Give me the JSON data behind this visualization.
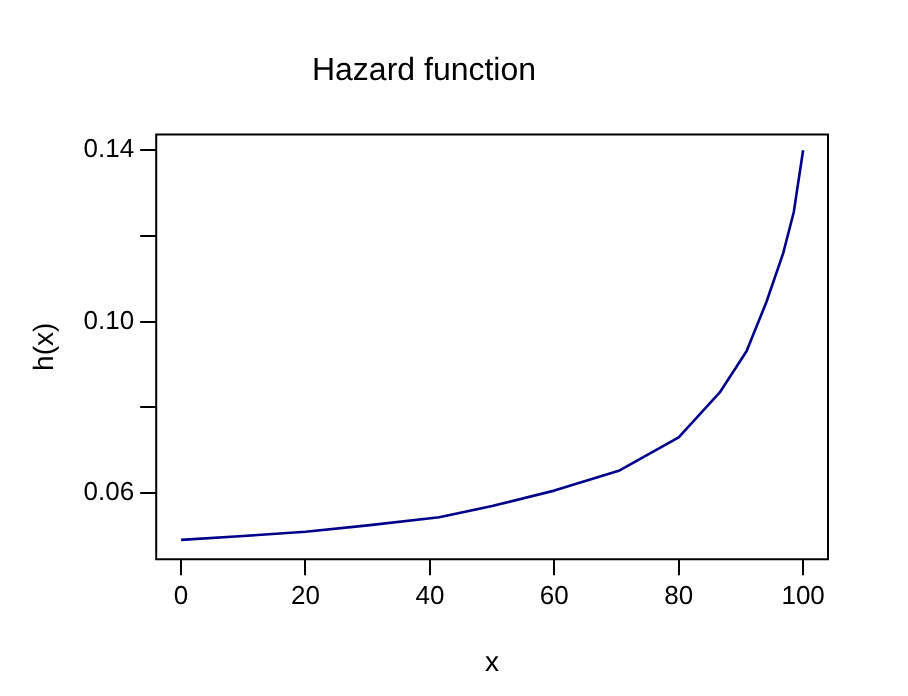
{
  "chart_data": {
    "type": "line",
    "title": "Hazard function",
    "xlabel": "x",
    "ylabel": "h(x)",
    "x": [
      0,
      10,
      20,
      30,
      41.5,
      50,
      60,
      70.5,
      80,
      86.6,
      90.9,
      94.1,
      96.8,
      98.5,
      100
    ],
    "series": [
      {
        "color": "#00008b",
        "values": [
          0.0491,
          0.05,
          0.051,
          0.0525,
          0.0544,
          0.057,
          0.0606,
          0.0653,
          0.073,
          0.0835,
          0.0931,
          0.1046,
          0.116,
          0.1256,
          0.14
        ]
      }
    ],
    "xlim": [
      -4,
      104
    ],
    "xticks": [
      0,
      20,
      40,
      60,
      80,
      100
    ],
    "ylim": [
      0.0446,
      0.1437
    ],
    "yticks": [
      0.06,
      {
        "value": 0.08,
        "label": null
      },
      {
        "value": 0.1,
        "label": "0.10"
      },
      {
        "value": 0.12,
        "label": null
      },
      0.14
    ],
    "grid": false,
    "legend": false,
    "marker": "none",
    "line_style": "solid"
  }
}
